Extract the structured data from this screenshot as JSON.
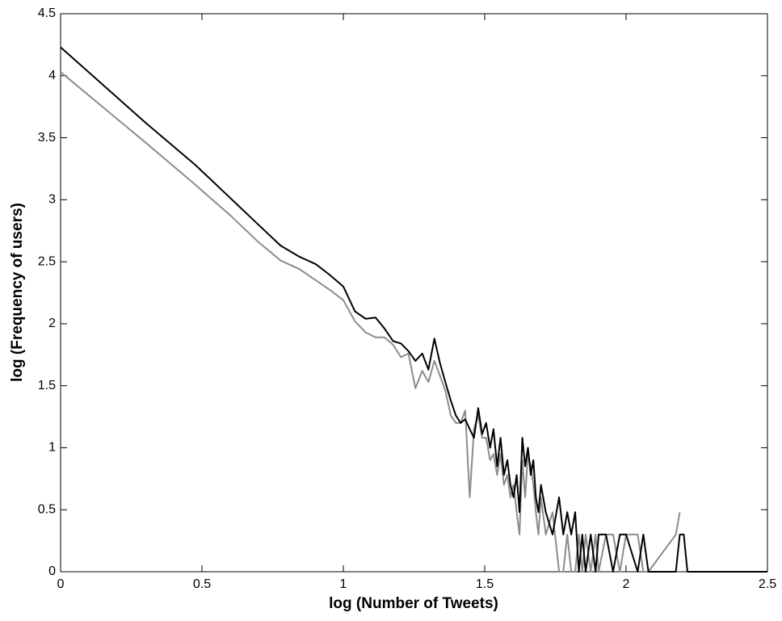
{
  "chart_data": {
    "type": "line",
    "xlabel": "log (Number of Tweets)",
    "ylabel": "log (Frequency of users)",
    "x": [
      0,
      0.301,
      0.477,
      0.602,
      0.699,
      0.778,
      0.845,
      0.903,
      0.954,
      1.0,
      1.041,
      1.079,
      1.114,
      1.146,
      1.176,
      1.204,
      1.23,
      1.255,
      1.279,
      1.301,
      1.322,
      1.342,
      1.362,
      1.38,
      1.398,
      1.415,
      1.431,
      1.447,
      1.462,
      1.477,
      1.491,
      1.505,
      1.519,
      1.531,
      1.544,
      1.556,
      1.568,
      1.58,
      1.591,
      1.602,
      1.613,
      1.623,
      1.633,
      1.643,
      1.653,
      1.663,
      1.672,
      1.681,
      1.69,
      1.699,
      1.716,
      1.74,
      1.763,
      1.778,
      1.792,
      1.806,
      1.82,
      1.833,
      1.845,
      1.857,
      1.875,
      1.892,
      1.903,
      1.929,
      1.954,
      1.978,
      2.0,
      2.041,
      2.061,
      2.079,
      2.176,
      2.19,
      2.204,
      2.217,
      2.5
    ],
    "series": [
      {
        "color": "#000000",
        "values": [
          4.23,
          3.62,
          3.28,
          3.01,
          2.8,
          2.63,
          2.54,
          2.48,
          2.39,
          2.3,
          2.1,
          2.04,
          2.05,
          1.96,
          1.86,
          1.84,
          1.78,
          1.7,
          1.76,
          1.63,
          1.88,
          1.68,
          1.52,
          1.38,
          1.26,
          1.2,
          1.23,
          1.15,
          1.08,
          1.32,
          1.11,
          1.2,
          1.0,
          1.15,
          0.85,
          1.08,
          0.78,
          0.9,
          0.7,
          0.6,
          0.78,
          0.48,
          1.08,
          0.85,
          1.0,
          0.78,
          0.9,
          0.6,
          0.48,
          0.7,
          0.48,
          0.3,
          0.6,
          0.3,
          0.48,
          0.3,
          0.48,
          0,
          0.3,
          0,
          0.3,
          0,
          0.3,
          0.3,
          0,
          0.3,
          0.3,
          0,
          0.3,
          0,
          0,
          0.3,
          0.3,
          0,
          0
        ]
      },
      {
        "color": "#8c8c8c",
        "values": [
          4.03,
          3.46,
          3.12,
          2.87,
          2.66,
          2.51,
          2.44,
          2.35,
          2.27,
          2.19,
          2.02,
          1.93,
          1.89,
          1.89,
          1.83,
          1.73,
          1.76,
          1.48,
          1.62,
          1.53,
          1.7,
          1.58,
          1.45,
          1.26,
          1.2,
          1.2,
          1.3,
          0.6,
          1.15,
          1.26,
          1.08,
          1.08,
          0.9,
          0.95,
          0.78,
          0.95,
          0.7,
          0.78,
          0.6,
          0.7,
          0.48,
          0.3,
          0.9,
          0.6,
          0.95,
          0.85,
          0.7,
          0.48,
          0.3,
          0.6,
          0.3,
          0.48,
          0,
          0,
          0.3,
          0,
          0,
          0.3,
          0,
          0.3,
          0,
          0.3,
          0,
          0.3,
          0.3,
          0,
          0.3,
          0.3,
          0,
          0,
          0.3,
          0.48,
          null,
          null,
          null
        ]
      }
    ],
    "xlim": [
      0,
      2.5
    ],
    "ylim": [
      0,
      4.5
    ],
    "xticks": [
      0,
      0.5,
      1,
      1.5,
      2,
      2.5
    ],
    "yticks": [
      0,
      0.5,
      1,
      1.5,
      2,
      2.5,
      3,
      3.5,
      4,
      4.5
    ],
    "grid": false
  }
}
